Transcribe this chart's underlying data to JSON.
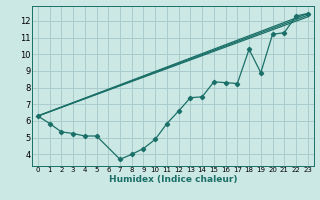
{
  "xlabel": "Humidex (Indice chaleur)",
  "bg_color": "#cce8e4",
  "grid_color": "#aacccc",
  "line_color": "#1a7068",
  "xlim": [
    -0.5,
    23.5
  ],
  "ylim": [
    3.3,
    12.9
  ],
  "yticks": [
    4,
    5,
    6,
    7,
    8,
    9,
    10,
    11,
    12
  ],
  "xticks": [
    0,
    1,
    2,
    3,
    4,
    5,
    6,
    7,
    8,
    9,
    10,
    11,
    12,
    13,
    14,
    15,
    16,
    17,
    18,
    19,
    20,
    21,
    22,
    23
  ],
  "line1_x": [
    0,
    1,
    2,
    3,
    4,
    5,
    7,
    8,
    9,
    10,
    11,
    12,
    13,
    14,
    15,
    16,
    17,
    18,
    19,
    20,
    21,
    22,
    23
  ],
  "line1_y": [
    6.3,
    5.85,
    5.35,
    5.25,
    5.1,
    5.1,
    3.7,
    4.0,
    4.35,
    4.9,
    5.85,
    6.6,
    7.4,
    7.45,
    8.35,
    8.3,
    8.25,
    10.3,
    8.9,
    11.2,
    11.3,
    12.3,
    12.45
  ],
  "line2_x": [
    0,
    23
  ],
  "line2_y": [
    6.3,
    12.45
  ],
  "line3_x": [
    0,
    23
  ],
  "line3_y": [
    6.3,
    12.35
  ],
  "line4_x": [
    0,
    23
  ],
  "line4_y": [
    6.3,
    12.25
  ]
}
